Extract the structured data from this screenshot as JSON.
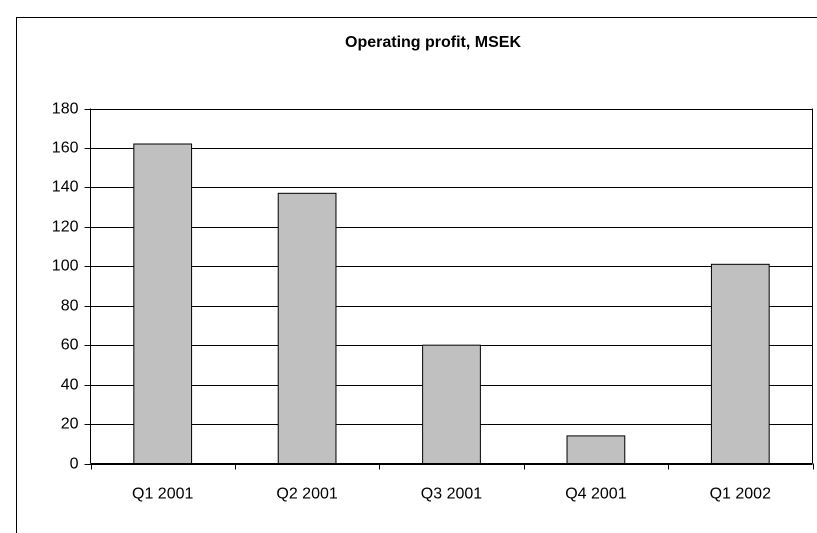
{
  "chart_data": {
    "type": "bar",
    "title": "Operating profit, MSEK",
    "categories": [
      "Q1 2001",
      "Q2 2001",
      "Q3 2001",
      "Q4 2001",
      "Q1 2002"
    ],
    "values": [
      162,
      137,
      60,
      14,
      101
    ],
    "color": "#c0c0c0",
    "ylim": [
      0,
      180
    ],
    "yticks": [
      0,
      20,
      40,
      60,
      80,
      100,
      120,
      140,
      160,
      180
    ],
    "grid": true
  }
}
